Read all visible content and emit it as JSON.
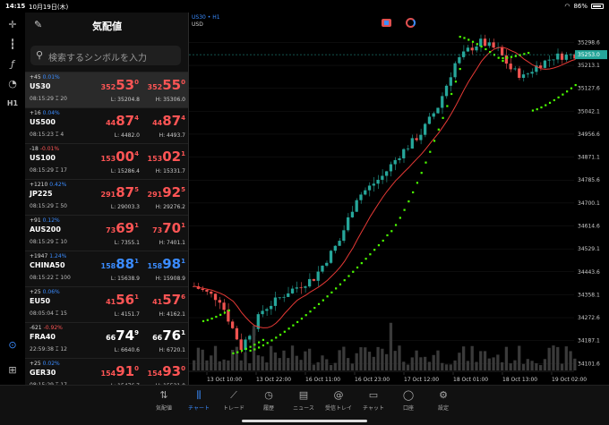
{
  "status": {
    "time": "14:15",
    "date": "10月19日(木)",
    "wifi": "wifi",
    "battery": "86%"
  },
  "toolbar": {
    "icons": [
      "crosshair-icon",
      "candles-icon",
      "function-icon",
      "shapes-icon"
    ],
    "timeframe": "H1"
  },
  "watchlist": {
    "title": "気配値",
    "search_placeholder": "検索するシンボルを入力",
    "rows": [
      {
        "change": "+45",
        "pct": "0.01%",
        "pct_color": "blue",
        "symbol": "US30",
        "time": "08:15:29 ⌶ 20",
        "bid_a": "352",
        "bid_b": "53",
        "bid_c": "0",
        "bid_color": "red",
        "ask_a": "352",
        "ask_b": "55",
        "ask_c": "0",
        "ask_color": "red",
        "low": "L: 35204.8",
        "high": "H: 35306.0"
      },
      {
        "change": "+16",
        "pct": "0.04%",
        "pct_color": "blue",
        "symbol": "US500",
        "time": "08:15:23 ⌶ 4",
        "bid_a": "44",
        "bid_b": "87",
        "bid_c": "4",
        "bid_color": "red",
        "ask_a": "44",
        "ask_b": "87",
        "ask_c": "4",
        "ask_color": "red",
        "low": "L: 4482.0",
        "high": "H: 4493.7"
      },
      {
        "change": "-18",
        "pct": "-0.01%",
        "pct_color": "red",
        "symbol": "US100",
        "time": "08:15:29 ⌶ 17",
        "bid_a": "153",
        "bid_b": "00",
        "bid_c": "4",
        "bid_color": "red",
        "ask_a": "153",
        "ask_b": "02",
        "ask_c": "1",
        "ask_color": "red",
        "low": "L: 15286.4",
        "high": "H: 15331.7"
      },
      {
        "change": "+1210",
        "pct": "0.42%",
        "pct_color": "blue",
        "symbol": "JP225",
        "time": "08:15:29 ⌶ 50",
        "bid_a": "291",
        "bid_b": "87",
        "bid_c": "5",
        "bid_color": "red",
        "ask_a": "291",
        "ask_b": "92",
        "ask_c": "5",
        "ask_color": "red",
        "low": "L: 29003.3",
        "high": "H: 29276.2"
      },
      {
        "change": "+91",
        "pct": "0.12%",
        "pct_color": "blue",
        "symbol": "AUS200",
        "time": "08:15:29 ⌶ 10",
        "bid_a": "73",
        "bid_b": "69",
        "bid_c": "1",
        "bid_color": "red",
        "ask_a": "73",
        "ask_b": "70",
        "ask_c": "1",
        "ask_color": "red",
        "low": "L: 7355.1",
        "high": "H: 7401.1"
      },
      {
        "change": "+1947",
        "pct": "1.24%",
        "pct_color": "blue",
        "symbol": "CHINA50",
        "time": "08:15:22 ⌶ 100",
        "bid_a": "158",
        "bid_b": "88",
        "bid_c": "1",
        "bid_color": "blue",
        "ask_a": "158",
        "ask_b": "98",
        "ask_c": "1",
        "ask_color": "blue",
        "low": "L: 15638.9",
        "high": "H: 15908.9"
      },
      {
        "change": "+25",
        "pct": "0.06%",
        "pct_color": "blue",
        "symbol": "EU50",
        "time": "08:05:04 ⌶ 15",
        "bid_a": "41",
        "bid_b": "56",
        "bid_c": "1",
        "bid_color": "red",
        "ask_a": "41",
        "ask_b": "57",
        "ask_c": "6",
        "ask_color": "red",
        "low": "L: 4151.7",
        "high": "H: 4162.1"
      },
      {
        "change": "-621",
        "pct": "-0.92%",
        "pct_color": "red",
        "symbol": "FRA40",
        "time": "22:59:38 ⌶ 12",
        "bid_a": "66",
        "bid_b": "74",
        "bid_c": "9",
        "bid_color": "white",
        "ask_a": "66",
        "ask_b": "76",
        "ask_c": "1",
        "ask_color": "white",
        "low": "L: 6640.6",
        "high": "H: 6720.1"
      },
      {
        "change": "+25",
        "pct": "0.02%",
        "pct_color": "blue",
        "symbol": "GER30",
        "time": "08:15:29 ⌶ 17",
        "bid_a": "154",
        "bid_b": "91",
        "bid_c": "0",
        "bid_color": "red",
        "ask_a": "154",
        "ask_b": "93",
        "ask_c": "0",
        "ask_color": "red",
        "low": "L: 15476.7",
        "high": "H: 15521.0"
      }
    ]
  },
  "chart": {
    "symbol_tf": "US30 • H1",
    "currency": "USD",
    "current_price": "35253.0",
    "colors": {
      "up": "#26a69a",
      "down": "#ef5350",
      "sar": "#4cff00",
      "ma": "#e53935"
    }
  },
  "chart_data": {
    "type": "candlestick",
    "y_ticks": [
      "35298.6",
      "35213.1",
      "35127.6",
      "35042.1",
      "34956.6",
      "34871.1",
      "34785.6",
      "34700.1",
      "34614.6",
      "34529.1",
      "34443.6",
      "34358.1",
      "34272.6",
      "34187.1",
      "34101.6"
    ],
    "x_ticks": [
      "13 Oct 10:00",
      "13 Oct 22:00",
      "16 Oct 11:00",
      "16 Oct 23:00",
      "17 Oct 12:00",
      "18 Oct 01:00",
      "18 Oct 13:00",
      "19 Oct 02:00"
    ],
    "ylim": [
      34076,
      35330
    ],
    "indicators": [
      "Parabolic SAR",
      "Moving Average"
    ]
  },
  "bottom_nav": [
    {
      "label": "気配値",
      "icon": "arrows-icon"
    },
    {
      "label": "チャート",
      "icon": "chart-icon"
    },
    {
      "label": "トレード",
      "icon": "trade-icon"
    },
    {
      "label": "履歴",
      "icon": "history-icon"
    },
    {
      "label": "ニュース",
      "icon": "news-icon"
    },
    {
      "label": "受信トレイ",
      "icon": "inbox-icon"
    },
    {
      "label": "チャット",
      "icon": "chat-icon"
    },
    {
      "label": "口座",
      "icon": "account-icon"
    },
    {
      "label": "設定",
      "icon": "settings-icon"
    }
  ]
}
